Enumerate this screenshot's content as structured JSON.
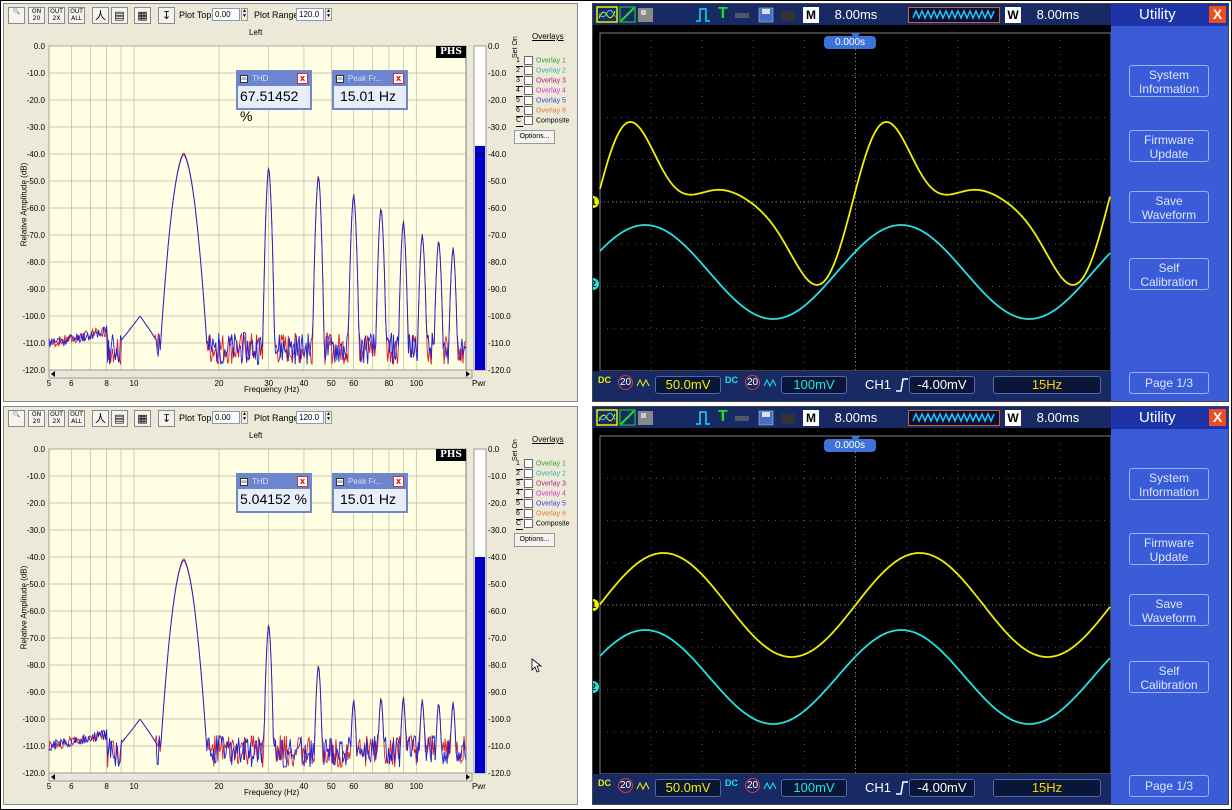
{
  "toolbar": {
    "plot_top_label": "Plot Top:",
    "plot_top_value": "0.00",
    "plot_range_label": "Plot Range:",
    "plot_range_value": "120.0",
    "buttons": [
      "ON 20",
      "OUT 2X",
      "OUT ALL"
    ]
  },
  "plot": {
    "title": "Left",
    "y_axis_label": "Relative Amplitude (dB)",
    "x_axis_label": "Frequency (Hz)",
    "logo": "PHS",
    "y_ticks": [
      "0.0",
      "-10.0",
      "-20.0",
      "-30.0",
      "-40.0",
      "-50.0",
      "-60.0",
      "-70.0",
      "-80.0",
      "-90.0",
      "-100.0",
      "-110.0",
      "-120.0"
    ],
    "x_ticks": [
      "5",
      "6",
      "8",
      "10",
      "20",
      "30",
      "40",
      "50",
      "60",
      "80",
      "100"
    ],
    "pwr_label": "Pwr",
    "measure_thd_title": "THD",
    "measure_peak_title": "Peak Fr...",
    "close_glyph": "x"
  },
  "overlays": {
    "title": "Overlays",
    "set_on_label": "Set On",
    "items": [
      {
        "num": "1",
        "label": "Overlay 1",
        "color": "#2e9e2e"
      },
      {
        "num": "2",
        "label": "Overlay 2",
        "color": "#32b4b4"
      },
      {
        "num": "3",
        "label": "Overlay 3",
        "color": "#a0287a"
      },
      {
        "num": "4",
        "label": "Overlay 4",
        "color": "#d232d2"
      },
      {
        "num": "5",
        "label": "Overlay 5",
        "color": "#3e3ed2"
      },
      {
        "num": "6",
        "label": "Overlay 6",
        "color": "#e67832"
      },
      {
        "num": "C",
        "label": "Composite",
        "color": "#000000"
      }
    ],
    "options_label": "Options..."
  },
  "panels": [
    {
      "thd_value": "67.51452 %",
      "peak_value": "15.01 Hz",
      "pwr_level_db": -37
    },
    {
      "thd_value": "5.04152 %",
      "peak_value": "15.01 Hz",
      "pwr_level_db": -40
    }
  ],
  "scope": {
    "menu_title": "Utility",
    "close_glyph": "X",
    "menu_buttons": [
      [
        "System",
        "Information"
      ],
      [
        "Firmware",
        "Update"
      ],
      [
        "Save",
        "Waveform"
      ],
      [
        "Self",
        "Calibration"
      ]
    ],
    "page_label": "Page 1/3",
    "m_label": "M",
    "m_time": "8.00ms",
    "w_label": "W",
    "w_time": "8.00ms",
    "trigger_T": "T",
    "trigger_offset": "0.000s",
    "ch1_coupling": "DC",
    "ch1_bw": "20",
    "ch1_scale": "50.0mV",
    "ch2_coupling": "DC",
    "ch2_bw": "20",
    "ch2_scale": "100mV",
    "trig_source": "CH1",
    "trig_level": "-4.00mV",
    "frequency": "15Hz",
    "ch1_marker": "1",
    "ch2_marker": "2",
    "ch1_color": "#f0f000",
    "ch2_color": "#22e4e4"
  }
}
